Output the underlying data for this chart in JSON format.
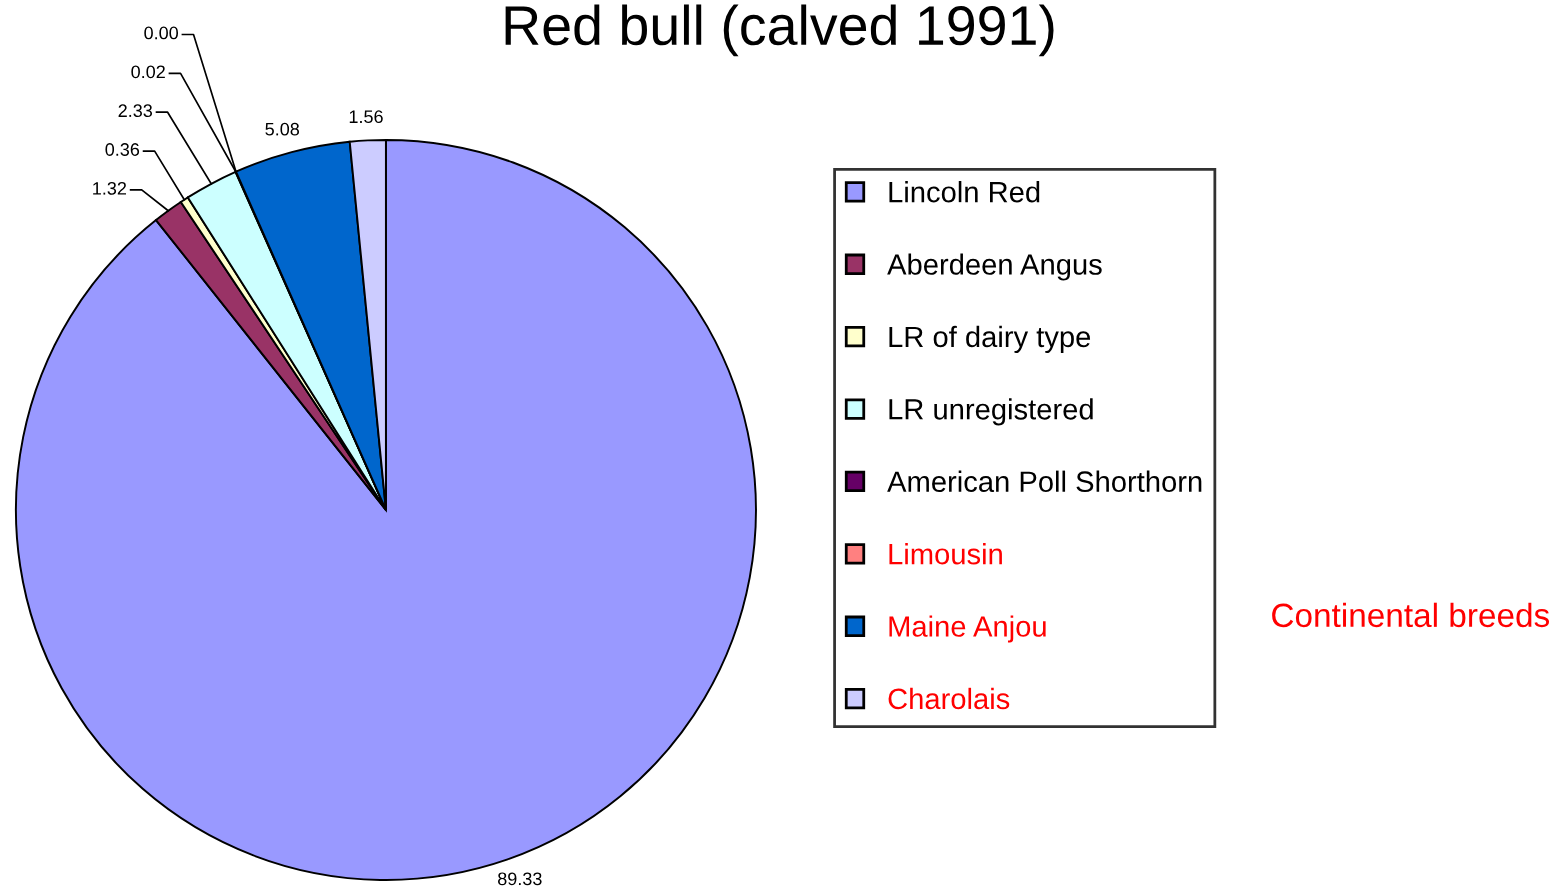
{
  "chart_data": {
    "type": "pie",
    "title": "Red bull (calved 1991)",
    "categories": [
      "Lincoln Red",
      "Aberdeen Angus",
      "LR of dairy type",
      "LR unregistered",
      "American Poll Shorthorn",
      "Limousin",
      "Maine Anjou",
      "Charolais"
    ],
    "values": [
      89.33,
      1.32,
      0.36,
      2.33,
      0.02,
      0.0,
      5.08,
      1.56
    ],
    "colors": [
      "#9999ff",
      "#993366",
      "#ffffcc",
      "#ccffff",
      "#660066",
      "#ff8080",
      "#0066cc",
      "#ccccff"
    ],
    "value_labels": [
      "89.33",
      "1.32",
      "0.36",
      "2.33",
      "0.02",
      "0.00",
      "5.08",
      "1.56"
    ],
    "legend": "right",
    "annotations": [
      "Continental breeds"
    ]
  }
}
